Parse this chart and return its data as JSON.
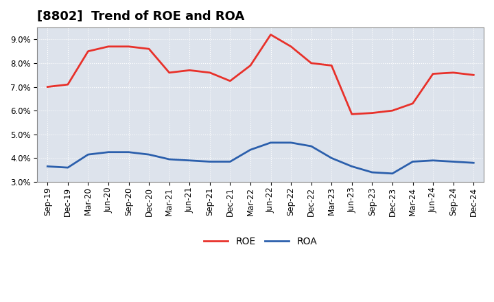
{
  "title": "[8802]  Trend of ROE and ROA",
  "x_labels": [
    "Sep-19",
    "Dec-19",
    "Mar-20",
    "Jun-20",
    "Sep-20",
    "Dec-20",
    "Mar-21",
    "Jun-21",
    "Sep-21",
    "Dec-21",
    "Mar-22",
    "Jun-22",
    "Sep-22",
    "Dec-22",
    "Mar-23",
    "Jun-23",
    "Sep-23",
    "Dec-23",
    "Mar-24",
    "Jun-24",
    "Sep-24",
    "Dec-24"
  ],
  "roe": [
    7.0,
    7.1,
    8.5,
    8.7,
    8.7,
    8.6,
    7.6,
    7.7,
    7.6,
    7.25,
    7.9,
    9.2,
    8.7,
    8.0,
    7.9,
    5.85,
    5.9,
    6.0,
    6.3,
    7.55,
    7.6,
    7.5
  ],
  "roa": [
    3.65,
    3.6,
    4.15,
    4.25,
    4.25,
    4.15,
    3.95,
    3.9,
    3.85,
    3.85,
    4.35,
    4.65,
    4.65,
    4.5,
    4.0,
    3.65,
    3.4,
    3.35,
    3.85,
    3.9,
    3.85,
    3.8
  ],
  "roe_color": "#e8312a",
  "roa_color": "#2b5fac",
  "background_color": "#ffffff",
  "plot_bg_color": "#dde3ec",
  "grid_color": "#ffffff",
  "ylim": [
    3.0,
    9.5
  ],
  "yticks": [
    3.0,
    4.0,
    5.0,
    6.0,
    7.0,
    8.0,
    9.0
  ],
  "title_fontsize": 13,
  "axis_fontsize": 8.5,
  "legend_fontsize": 10,
  "line_width": 2.0
}
